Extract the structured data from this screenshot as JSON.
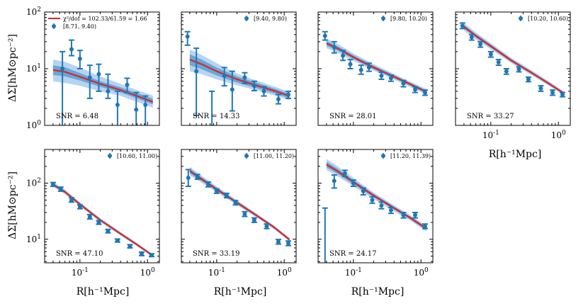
{
  "figure": {
    "ylabel": "ΔΣ[hM⊙pc⁻²]",
    "xlabel": "R[h⁻¹Mpc]",
    "colors": {
      "model": "#d62728",
      "data": "#1f77b4",
      "band_dark": "#5a9fd4",
      "band_light": "#a9cdef"
    }
  },
  "chart_data": [
    {
      "type": "scatter",
      "panel": "row1-col1",
      "legend_fit": "χ²/dof = 102.33/61.59 = 1.66",
      "legend_bin": "[8.71, 9.40)",
      "snr": "SNR = 6.48",
      "xlim": [
        0.03,
        1.5
      ],
      "ylim": [
        1,
        100
      ],
      "xscale": "log",
      "yscale": "log",
      "x": [
        0.04,
        0.055,
        0.075,
        0.1,
        0.14,
        0.19,
        0.26,
        0.36,
        0.5,
        0.68,
        0.93,
        1.2
      ],
      "y": [
        null,
        10.0,
        22.0,
        15.0,
        7.0,
        8.0,
        4.0,
        2.3,
        5.2,
        1.9,
        2.3,
        null
      ],
      "err_lo": [
        null,
        1.0,
        17.0,
        10.0,
        3.0,
        4.0,
        3.0,
        0.8,
        3.8,
        0.8,
        1.0,
        null
      ],
      "err_hi": [
        null,
        20.0,
        32.0,
        21.0,
        11.5,
        12.0,
        8.0,
        4.0,
        6.8,
        3.8,
        3.3,
        null
      ],
      "model_x": [
        0.04,
        0.06,
        0.1,
        0.2,
        0.4,
        0.7,
        1.2
      ],
      "model_y": [
        9.5,
        8.8,
        7.2,
        5.4,
        4.2,
        3.3,
        2.6
      ],
      "band_inner": [
        [
          7.8,
          11.5
        ],
        [
          7.3,
          10.6
        ],
        [
          6.2,
          8.4
        ],
        [
          4.8,
          6.0
        ],
        [
          3.8,
          4.7
        ],
        [
          3.0,
          3.7
        ],
        [
          2.35,
          2.95
        ]
      ],
      "band_outer": [
        [
          6.0,
          14.5
        ],
        [
          5.6,
          13.3
        ],
        [
          5.0,
          10.4
        ],
        [
          4.0,
          7.3
        ],
        [
          3.3,
          5.4
        ],
        [
          2.6,
          4.2
        ],
        [
          2.05,
          3.35
        ]
      ],
      "show_xlabels": false,
      "show_ylabels": true
    },
    {
      "type": "scatter",
      "panel": "row1-col2",
      "legend_bin": "[9.40, 9.80)",
      "snr": "SNR = 14.33",
      "xlim": [
        0.03,
        1.5
      ],
      "ylim": [
        1,
        100
      ],
      "xscale": "log",
      "yscale": "log",
      "x": [
        0.037,
        0.05,
        0.07,
        0.09,
        0.13,
        0.17,
        0.26,
        0.36,
        0.5,
        0.82,
        1.15
      ],
      "y": [
        37.0,
        9.0,
        null,
        null,
        7.5,
        4.3,
        7.0,
        5.0,
        4.0,
        2.9,
        3.5
      ],
      "err_lo": [
        26.0,
        1.5,
        null,
        null,
        5.0,
        1.8,
        5.5,
        4.1,
        3.3,
        2.4,
        3.0
      ],
      "err_hi": [
        45.0,
        23.0,
        null,
        null,
        10.5,
        9.0,
        8.5,
        6.0,
        4.8,
        3.5,
        4.0
      ],
      "model_x": [
        0.04,
        0.06,
        0.1,
        0.2,
        0.4,
        0.7,
        1.2
      ],
      "model_y": [
        14.5,
        12.0,
        9.0,
        6.5,
        5.0,
        4.1,
        3.3
      ],
      "band_inner": [
        [
          11.5,
          18.0
        ],
        [
          9.8,
          14.5
        ],
        [
          7.6,
          10.5
        ],
        [
          5.7,
          7.3
        ],
        [
          4.5,
          5.6
        ],
        [
          3.7,
          4.5
        ],
        [
          3.0,
          3.6
        ]
      ],
      "band_outer": [
        [
          9.0,
          22.0
        ],
        [
          8.0,
          17.5
        ],
        [
          6.5,
          12.5
        ],
        [
          5.1,
          8.2
        ],
        [
          4.1,
          6.1
        ],
        [
          3.4,
          4.9
        ],
        [
          2.8,
          3.9
        ]
      ],
      "extra_errorbar": {
        "x": 0.085,
        "lo": 1.0,
        "hi": 4.0
      },
      "show_xlabels": false,
      "show_ylabels": false
    },
    {
      "type": "scatter",
      "panel": "row1-col3",
      "legend_bin": "[9.80, 10.20)",
      "snr": "SNR = 28.01",
      "xlim": [
        0.03,
        1.5
      ],
      "ylim": [
        1,
        100
      ],
      "xscale": "log",
      "yscale": "log",
      "x": [
        0.038,
        0.052,
        0.07,
        0.09,
        0.13,
        0.17,
        0.26,
        0.36,
        0.55,
        0.82,
        1.15
      ],
      "y": [
        38.0,
        24.0,
        17.0,
        12.0,
        9.5,
        10.5,
        7.5,
        6.8,
        5.5,
        4.3,
        3.8
      ],
      "err_lo": [
        32.0,
        19.0,
        14.0,
        10.0,
        8.0,
        9.0,
        6.5,
        6.0,
        4.8,
        3.8,
        3.4
      ],
      "err_hi": [
        45.0,
        30.0,
        21.0,
        14.5,
        11.5,
        12.5,
        8.7,
        7.7,
        6.2,
        4.8,
        4.2
      ],
      "model_x": [
        0.04,
        0.06,
        0.1,
        0.2,
        0.4,
        0.7,
        1.2
      ],
      "model_y": [
        28.0,
        22.5,
        16.0,
        10.5,
        7.2,
        5.3,
        3.9
      ],
      "band_inner": [
        [
          25.5,
          30.8
        ],
        [
          20.6,
          24.6
        ],
        [
          14.8,
          17.3
        ],
        [
          9.8,
          11.3
        ],
        [
          6.8,
          7.7
        ],
        [
          5.0,
          5.6
        ],
        [
          3.7,
          4.15
        ]
      ],
      "band_outer": [
        [
          23.0,
          34.0
        ],
        [
          18.8,
          27.0
        ],
        [
          13.8,
          18.6
        ],
        [
          9.2,
          12.0
        ],
        [
          6.4,
          8.1
        ],
        [
          4.7,
          5.9
        ],
        [
          3.5,
          4.4
        ]
      ],
      "show_xlabels": false,
      "show_ylabels": false
    },
    {
      "type": "scatter",
      "panel": "row1-col4",
      "legend_bin": "[10.20, 10.60)",
      "snr": "SNR = 33.27",
      "xlim": [
        0.03,
        1.5
      ],
      "ylim": [
        1,
        100
      ],
      "xscale": "log",
      "yscale": "log",
      "x": [
        0.038,
        0.052,
        0.07,
        0.1,
        0.13,
        0.17,
        0.26,
        0.36,
        0.55,
        0.82,
        1.15
      ],
      "y": [
        57.0,
        36.0,
        27.0,
        18.0,
        13.0,
        9.0,
        9.8,
        6.5,
        4.5,
        3.8,
        3.5
      ],
      "err_lo": [
        51.0,
        32.0,
        24.0,
        16.0,
        11.5,
        8.0,
        8.8,
        5.9,
        4.0,
        3.4,
        3.2
      ],
      "err_hi": [
        64.0,
        40.0,
        30.0,
        20.0,
        14.5,
        10.0,
        10.8,
        7.1,
        5.0,
        4.2,
        3.8
      ],
      "model_x": [
        0.04,
        0.06,
        0.1,
        0.2,
        0.4,
        0.7,
        1.2
      ],
      "model_y": [
        55.0,
        38.0,
        25.0,
        14.0,
        8.5,
        5.6,
        3.7
      ],
      "band_inner": [
        [
          51.0,
          59.0
        ],
        [
          35.5,
          40.7
        ],
        [
          23.5,
          26.6
        ],
        [
          13.3,
          14.8
        ],
        [
          8.1,
          8.9
        ],
        [
          5.35,
          5.85
        ],
        [
          3.55,
          3.85
        ]
      ],
      "band_outer": [
        [
          47.0,
          64.0
        ],
        [
          33.0,
          43.5
        ],
        [
          22.0,
          28.3
        ],
        [
          12.6,
          15.6
        ],
        [
          7.7,
          9.4
        ],
        [
          5.1,
          6.15
        ],
        [
          3.4,
          4.0
        ]
      ],
      "show_xlabels": true,
      "show_ylabels": false
    },
    {
      "type": "scatter",
      "panel": "row2-col1",
      "legend_bin": "[10.60, 11.00)",
      "snr": "SNR = 47.10",
      "xlim": [
        0.03,
        1.5
      ],
      "ylim": [
        3.8,
        400
      ],
      "xscale": "log",
      "yscale": "log",
      "x": [
        0.04,
        0.052,
        0.075,
        0.1,
        0.14,
        0.19,
        0.26,
        0.36,
        0.55,
        0.82,
        1.15
      ],
      "y": [
        95.0,
        78.0,
        50.0,
        38.0,
        25.0,
        20.0,
        14.0,
        9.5,
        7.5,
        5.5,
        5.2
      ],
      "err_lo": [
        88.0,
        72.0,
        46.0,
        35.0,
        23.0,
        18.5,
        13.0,
        8.9,
        7.0,
        5.1,
        4.9
      ],
      "err_hi": [
        103.0,
        85.0,
        55.0,
        41.0,
        27.5,
        21.5,
        15.0,
        10.1,
        8.0,
        5.9,
        5.5
      ],
      "model_x": [
        0.04,
        0.06,
        0.1,
        0.2,
        0.4,
        0.7,
        1.2
      ],
      "model_y": [
        95.0,
        70.0,
        42.0,
        22.0,
        12.5,
        8.0,
        5.1
      ],
      "band_inner": [
        [
          90.0,
          100.0
        ],
        [
          66.5,
          73.5
        ],
        [
          40.0,
          44.0
        ],
        [
          21.0,
          23.0
        ],
        [
          12.0,
          13.0
        ],
        [
          7.7,
          8.3
        ],
        [
          4.9,
          5.3
        ]
      ],
      "band_outer": [
        [
          86.0,
          105.0
        ],
        [
          63.5,
          77.0
        ],
        [
          38.5,
          46.0
        ],
        [
          20.3,
          23.8
        ],
        [
          11.6,
          13.5
        ],
        [
          7.5,
          8.6
        ],
        [
          4.8,
          5.45
        ]
      ],
      "show_xlabels": true,
      "show_ylabels": true
    },
    {
      "type": "scatter",
      "panel": "row2-col2",
      "legend_bin": "[11.00, 11.20)",
      "snr": "SNR = 33.19",
      "xlim": [
        0.03,
        1.5
      ],
      "ylim": [
        3.8,
        400
      ],
      "xscale": "log",
      "yscale": "log",
      "x": [
        0.038,
        0.052,
        0.075,
        0.1,
        0.14,
        0.19,
        0.26,
        0.36,
        0.55,
        0.82,
        1.15
      ],
      "y": [
        125.0,
        130.0,
        95.0,
        72.0,
        60.0,
        45.0,
        28.0,
        22.0,
        17.0,
        9.0,
        8.5
      ],
      "err_lo": [
        88.0,
        118.0,
        86.0,
        66.0,
        55.0,
        41.0,
        25.5,
        20.0,
        15.5,
        8.2,
        7.7
      ],
      "err_hi": [
        175.0,
        143.0,
        105.0,
        79.0,
        66.0,
        49.0,
        31.0,
        24.0,
        18.7,
        9.9,
        9.3
      ],
      "model_x": [
        0.04,
        0.06,
        0.1,
        0.2,
        0.4,
        0.7,
        1.2
      ],
      "model_y": [
        165.0,
        118.0,
        78.0,
        45.0,
        26.0,
        16.5,
        9.8
      ],
      "band_inner": [
        [
          150.0,
          180.0
        ],
        [
          109.0,
          127.0
        ],
        [
          73.0,
          83.0
        ],
        [
          42.5,
          47.5
        ],
        [
          24.8,
          27.2
        ],
        [
          15.8,
          17.2
        ],
        [
          9.4,
          10.2
        ]
      ],
      "band_outer": [
        [
          138.0,
          196.0
        ],
        [
          102.0,
          136.0
        ],
        [
          69.0,
          88.0
        ],
        [
          40.5,
          49.5
        ],
        [
          23.8,
          28.3
        ],
        [
          15.2,
          17.8
        ],
        [
          9.1,
          10.6
        ]
      ],
      "show_xlabels": true,
      "show_ylabels": false
    },
    {
      "type": "scatter",
      "panel": "row2-col3",
      "legend_bin": "[11.20, 11.39)",
      "snr": "SNR = 24.17",
      "xlim": [
        0.03,
        1.5
      ],
      "ylim": [
        3.8,
        400
      ],
      "xscale": "log",
      "yscale": "log",
      "x": [
        0.038,
        0.052,
        0.075,
        0.1,
        0.14,
        0.19,
        0.26,
        0.36,
        0.55,
        0.82,
        1.15
      ],
      "y": [
        null,
        110.0,
        150.0,
        100.0,
        72.0,
        50.0,
        40.0,
        33.0,
        27.0,
        27.0,
        17.0
      ],
      "err_lo": [
        3.8,
        82.0,
        132.0,
        88.0,
        62.0,
        44.0,
        35.0,
        29.0,
        24.0,
        24.0,
        15.5
      ],
      "err_hi": [
        36.0,
        140.0,
        170.0,
        114.0,
        82.0,
        57.0,
        46.0,
        37.0,
        30.0,
        30.0,
        18.7
      ],
      "model_x": [
        0.04,
        0.06,
        0.1,
        0.2,
        0.4,
        0.7,
        1.2
      ],
      "model_y": [
        215.0,
        160.0,
        105.0,
        60.0,
        36.0,
        24.0,
        15.5
      ],
      "band_inner": [
        [
          192.0,
          240.0
        ],
        [
          144.0,
          177.0
        ],
        [
          96.0,
          114.0
        ],
        [
          56.0,
          64.0
        ],
        [
          33.8,
          38.2
        ],
        [
          22.6,
          25.4
        ],
        [
          14.6,
          16.4
        ]
      ],
      "band_outer": [
        [
          172.0,
          270.0
        ],
        [
          130.0,
          196.0
        ],
        [
          88.0,
          124.0
        ],
        [
          52.0,
          68.0
        ],
        [
          31.5,
          40.5
        ],
        [
          21.3,
          26.7
        ],
        [
          13.8,
          17.3
        ]
      ],
      "show_xlabels": true,
      "show_ylabels": false
    }
  ]
}
